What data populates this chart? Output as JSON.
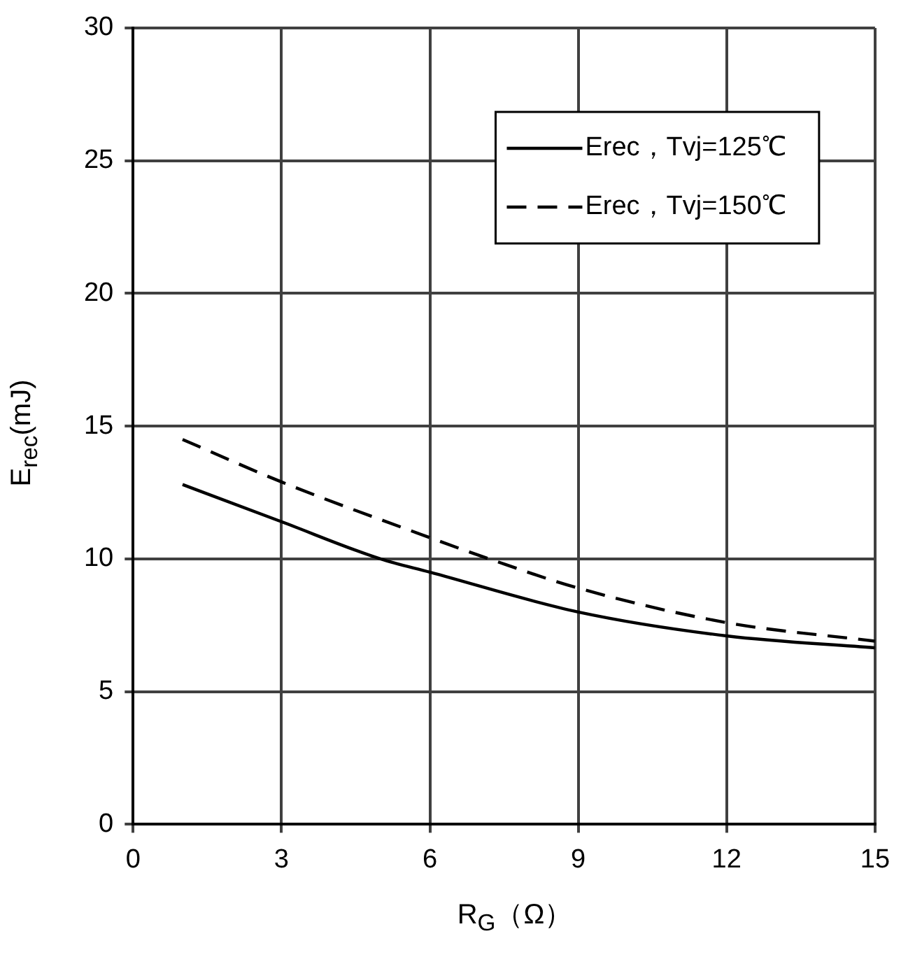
{
  "chart_data": {
    "type": "line",
    "xlabel": "R$_{G}$（Ω）",
    "ylabel": "E$_{rec}$(mJ)",
    "xlim": [
      0,
      15
    ],
    "xticks": [
      0,
      3,
      6,
      9,
      12,
      15
    ],
    "ylim": [
      0,
      30
    ],
    "yticks": [
      0,
      5,
      10,
      15,
      20,
      25,
      30
    ],
    "grid": true,
    "legend": "top right",
    "marker": "none",
    "series": [
      {
        "name": "Erec，Tvj=125℃",
        "color": "#000000",
        "line_style": "solid",
        "x": [
          1,
          3,
          5,
          6,
          9,
          12,
          15
        ],
        "values": [
          12.8,
          11.4,
          10.0,
          9.5,
          8.0,
          7.1,
          6.65
        ]
      },
      {
        "name": "Erec，Tvj=150℃",
        "color": "#000000",
        "line_style": "dashed",
        "x": [
          1,
          3,
          6,
          7.2,
          9,
          12,
          15
        ],
        "values": [
          14.5,
          12.9,
          10.8,
          10.0,
          8.9,
          7.6,
          6.9
        ]
      }
    ]
  }
}
